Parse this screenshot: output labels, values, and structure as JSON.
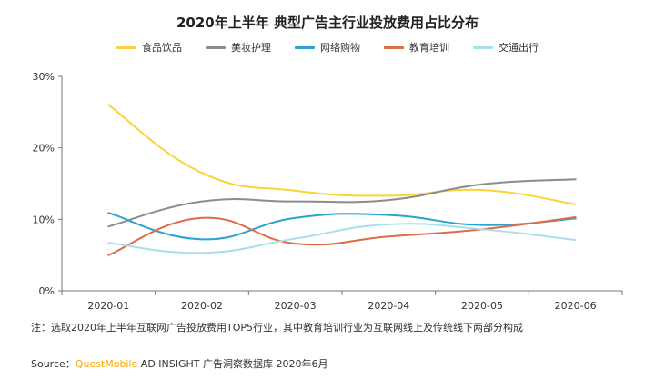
{
  "chart_data": {
    "type": "line",
    "title": "2020年上半年 典型广告主行业投放费用占比分布",
    "categories": [
      "2020-01",
      "2020-02",
      "2020-03",
      "2020-04",
      "2020-05",
      "2020-06"
    ],
    "y_ticks": [
      "0%",
      "10%",
      "20%",
      "30%"
    ],
    "ylim": [
      0,
      30
    ],
    "grid": false,
    "legend_position": "top",
    "series": [
      {
        "name": "食品饮品",
        "color": "#f9d338",
        "values": [
          26.0,
          16.5,
          14.0,
          13.3,
          14.1,
          12.1
        ]
      },
      {
        "name": "美妆护理",
        "color": "#8c8c8c",
        "values": [
          9.0,
          12.5,
          12.5,
          12.7,
          14.9,
          15.6
        ]
      },
      {
        "name": "网络购物",
        "color": "#2aa3cf",
        "values": [
          10.9,
          7.2,
          10.2,
          10.6,
          9.2,
          10.1
        ]
      },
      {
        "name": "教育培训",
        "color": "#e06b48",
        "values": [
          5.0,
          10.2,
          6.6,
          7.6,
          8.6,
          10.3
        ]
      },
      {
        "name": "交通出行",
        "color": "#a9dfe8",
        "values": [
          6.7,
          5.3,
          7.3,
          9.3,
          8.6,
          7.1
        ]
      }
    ]
  },
  "note": "注：选取2020年上半年互联网广告投放费用TOP5行业，其中教育培训行业为互联网线上及传统线下两部分构成",
  "source": {
    "prefix": "Source：",
    "brand": "QuestMobile",
    "rest": " AD INSIGHT 广告洞察数据库 2020年6月"
  }
}
